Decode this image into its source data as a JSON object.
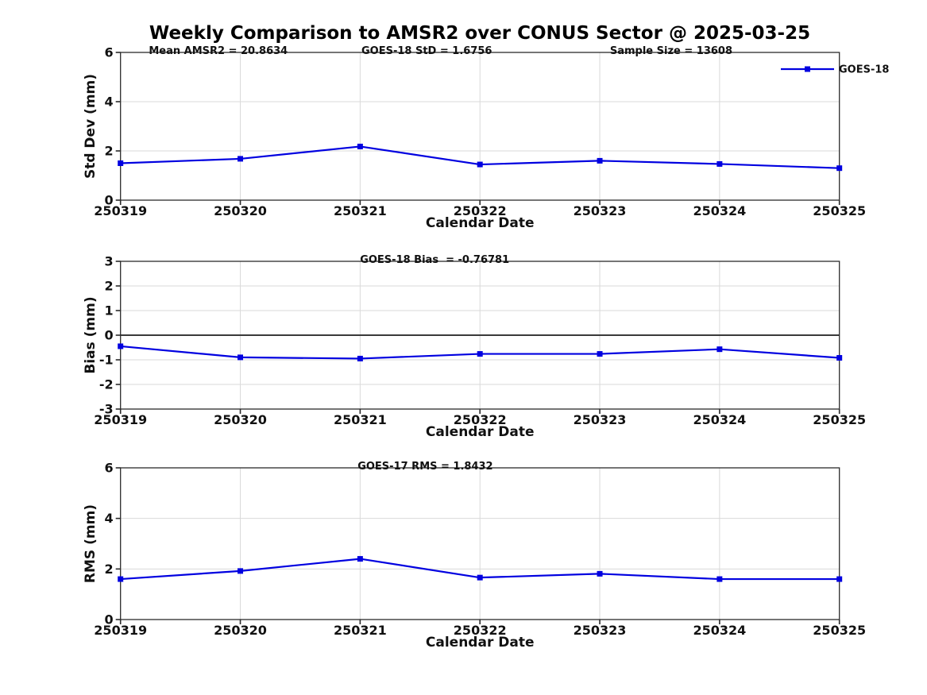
{
  "page_title": "Weekly Comparison to AMSR2 over CONUS Sector @ 2025-03-25",
  "legend": {
    "label": "GOES-18"
  },
  "colors": {
    "line": "#0000E0",
    "grid": "#D9D9D9",
    "spine": "#2B2B2B",
    "text": "#111111",
    "zero_line": "#3A3A3A",
    "background": "#FFFFFF"
  },
  "chart_data": [
    {
      "name": "std-dev",
      "type": "line",
      "annotations": [
        "Mean AMSR2 = 20.8634",
        "GOES-18 StD = 1.6756",
        "Sample Size = 13608"
      ],
      "ylabel": "Std Dev (mm)",
      "xlabel": "Calendar Date",
      "categories": [
        "250319",
        "250320",
        "250321",
        "250322",
        "250323",
        "250324",
        "250325"
      ],
      "series": [
        {
          "name": "GOES-18",
          "marker": "square",
          "values": [
            1.5,
            1.68,
            2.18,
            1.45,
            1.6,
            1.47,
            1.3
          ]
        }
      ],
      "ylim": [
        0,
        6
      ],
      "yticks": [
        0,
        2,
        4,
        6
      ],
      "grid": true,
      "zero_line": false,
      "legend_position": "top-right-outside"
    },
    {
      "name": "bias",
      "type": "line",
      "annotations": [
        "GOES-18 Bias  = -0.76781"
      ],
      "ylabel": "Bias (mm)",
      "xlabel": "Calendar Date",
      "categories": [
        "250319",
        "250320",
        "250321",
        "250322",
        "250323",
        "250324",
        "250325"
      ],
      "series": [
        {
          "name": "GOES-18",
          "marker": "square",
          "values": [
            -0.45,
            -0.9,
            -0.95,
            -0.76,
            -0.76,
            -0.57,
            -0.92
          ]
        }
      ],
      "ylim": [
        -3,
        3
      ],
      "yticks": [
        -3,
        -2,
        -1,
        0,
        1,
        2,
        3
      ],
      "grid": true,
      "zero_line": true,
      "legend_position": "none"
    },
    {
      "name": "rms",
      "type": "line",
      "annotations": [
        "GOES-17 RMS = 1.8432"
      ],
      "ylabel": "RMS (mm)",
      "xlabel": "Calendar Date",
      "categories": [
        "250319",
        "250320",
        "250321",
        "250322",
        "250323",
        "250324",
        "250325"
      ],
      "series": [
        {
          "name": "GOES-18",
          "marker": "square",
          "values": [
            1.6,
            1.92,
            2.4,
            1.66,
            1.81,
            1.6,
            1.6
          ]
        }
      ],
      "ylim": [
        0,
        6
      ],
      "yticks": [
        0,
        2,
        4,
        6
      ],
      "grid": true,
      "zero_line": false,
      "legend_position": "none"
    }
  ]
}
